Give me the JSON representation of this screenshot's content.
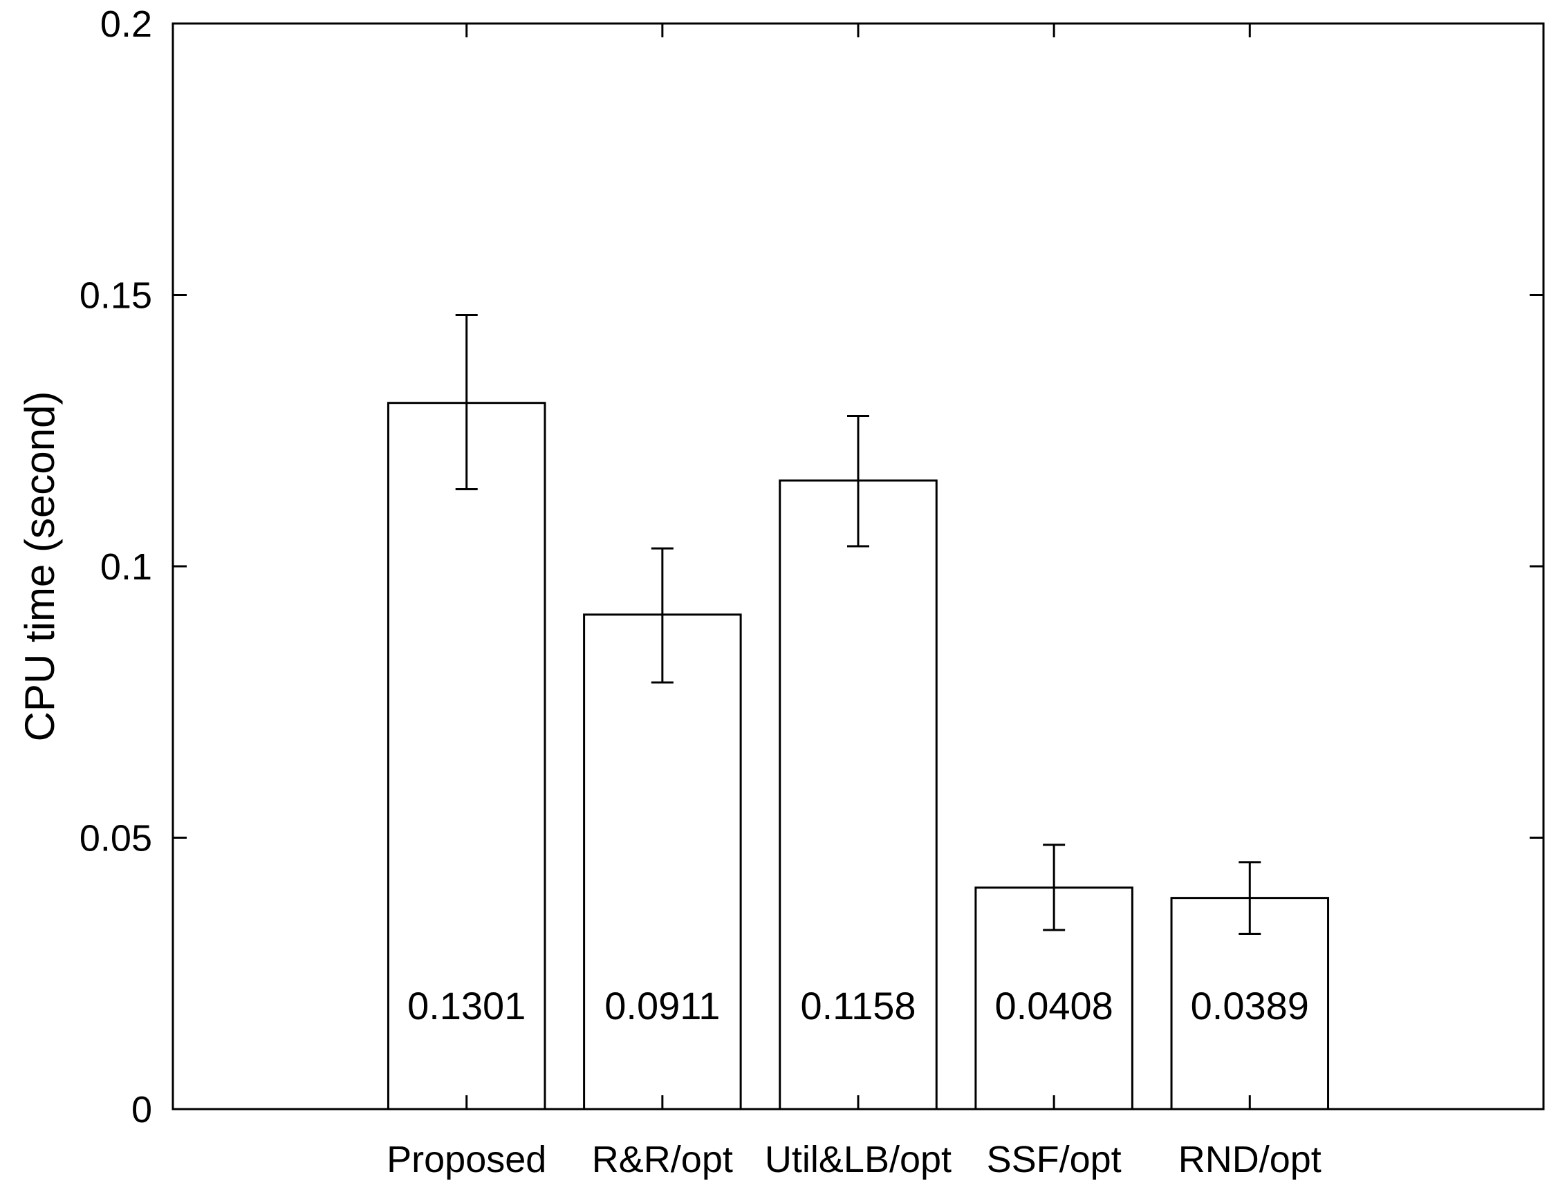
{
  "chart_data": {
    "type": "bar",
    "title": "",
    "xlabel": "",
    "ylabel": "CPU time (second)",
    "ylim": [
      0,
      0.2
    ],
    "yticks": [
      0,
      0.05,
      0.1,
      0.15,
      0.2
    ],
    "ytick_labels": [
      "0",
      "0.05",
      "0.1",
      "0.15",
      "0.2"
    ],
    "grid": false,
    "legend": "none",
    "categories": [
      "Proposed",
      "R&R/opt",
      "Util&LB/opt",
      "SSF/opt",
      "RND/opt"
    ],
    "values": [
      0.1301,
      0.0911,
      0.1158,
      0.0408,
      0.0389
    ],
    "value_labels": [
      "0.1301",
      "0.0911",
      "0.1158",
      "0.0408",
      "0.0389"
    ],
    "error_low": [
      0.1142,
      0.0786,
      0.1037,
      0.033,
      0.0323
    ],
    "error_high": [
      0.1463,
      0.1033,
      0.1277,
      0.0487,
      0.0455
    ],
    "bar_fill": "#ffffff",
    "bar_edge": "#000000"
  }
}
